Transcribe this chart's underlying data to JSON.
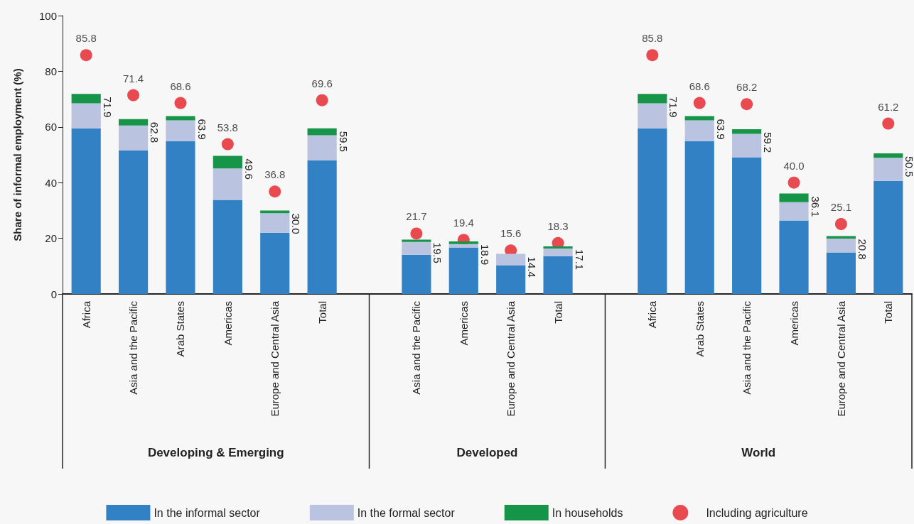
{
  "chart_data": {
    "type": "bar",
    "stacked": true,
    "ylabel": "Share of informal employment (%)",
    "categories": [
      "Africa",
      "Asia and the Pacific",
      "Arab States",
      "Americas",
      "Europe and Central Asia",
      "Total",
      null,
      "Asia and the Pacific",
      "Americas",
      "Europe and Central Asia",
      "Total",
      null,
      "Africa",
      "Arab States",
      "Asia and the Pacific",
      "Americas",
      "Europe and Central Asia",
      "Total"
    ],
    "series": [
      {
        "name": "In the informal sector",
        "color": "#3181c4",
        "values": [
          59.5,
          51.5,
          54.9,
          33.8,
          22.0,
          48.0,
          null,
          14.1,
          16.7,
          10.3,
          13.6,
          null,
          59.5,
          54.9,
          49.1,
          26.4,
          14.9,
          40.6
        ]
      },
      {
        "name": "In the formal sector",
        "color": "#bac3df",
        "values": [
          9.0,
          9.0,
          7.5,
          11.3,
          7.0,
          9.0,
          null,
          4.6,
          1.2,
          4.1,
          2.7,
          null,
          9.0,
          7.5,
          8.4,
          6.6,
          5.0,
          8.3
        ]
      },
      {
        "name": "In households",
        "color": "#169447",
        "values": [
          3.4,
          2.3,
          1.5,
          4.5,
          1.0,
          2.5,
          null,
          0.8,
          1.0,
          0,
          0.8,
          null,
          3.4,
          1.5,
          1.7,
          3.1,
          0.9,
          1.6
        ]
      },
      {
        "name": "Including agriculture",
        "type": "scatter",
        "color": "#e31e24",
        "values": [
          85.8,
          71.4,
          68.6,
          53.8,
          36.8,
          69.6,
          null,
          21.7,
          19.4,
          15.6,
          18.3,
          null,
          85.8,
          68.6,
          68.2,
          40.0,
          25.1,
          61.2
        ],
        "value_labels": [
          "85.8",
          "71.4",
          "68.6",
          "53.8",
          "36.8",
          "69.6",
          null,
          "21.7",
          "19.4",
          "15.6",
          "18.3",
          null,
          "85.8",
          "68.6",
          "68.2",
          "40.0",
          "25.1",
          "61.2"
        ]
      }
    ],
    "totals": [
      "71.9",
      "62.8",
      "63.9",
      "49.6",
      "30.0",
      "59.5",
      null,
      "19.5",
      "18.9",
      "14.4",
      "17.1",
      null,
      "71.9",
      "63.9",
      "59.2",
      "36.1",
      "20.8",
      "50.5"
    ],
    "ylim": [
      0,
      100
    ],
    "yticks": [
      0,
      20,
      40,
      60,
      80,
      100
    ],
    "grid": false,
    "legend": "bottom",
    "marker": "circle",
    "annotations": [
      "Developing & Emerging",
      "Developed",
      "World"
    ]
  }
}
